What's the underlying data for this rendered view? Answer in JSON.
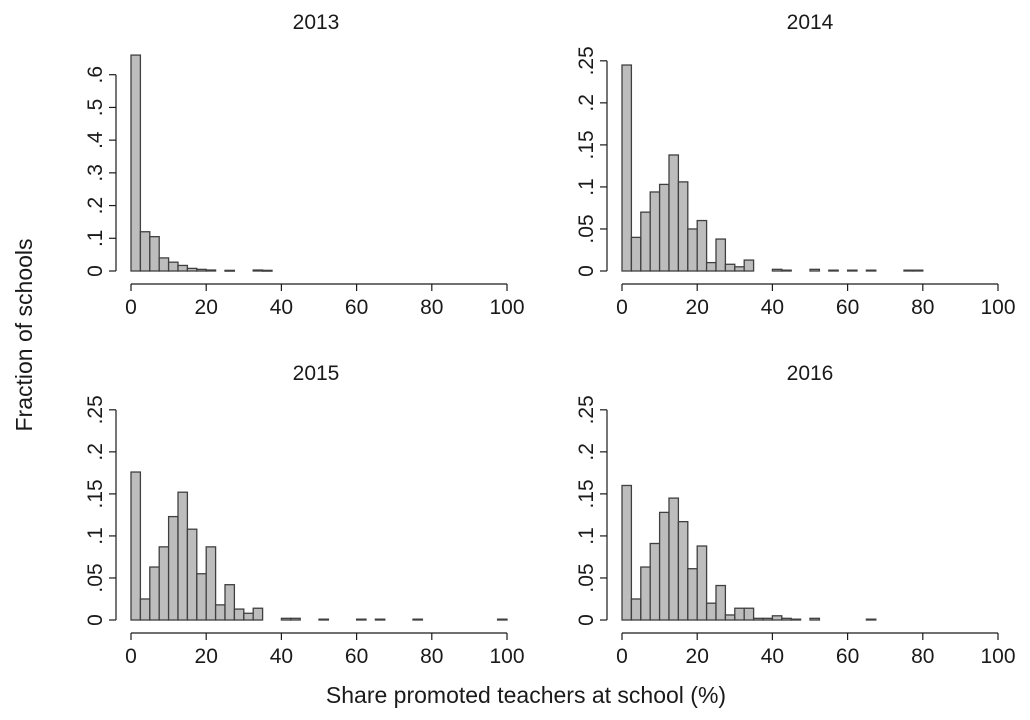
{
  "figure": {
    "xlabel": "Share promoted teachers at school (%)",
    "ylabel": "Fraction of schools"
  },
  "chart_data": [
    {
      "type": "bar",
      "title": "2013",
      "xlim": [
        0,
        100
      ],
      "ylim": [
        0,
        0.7
      ],
      "x_ticks": [
        0,
        20,
        40,
        60,
        80,
        100
      ],
      "x_tick_labels": [
        "0",
        "20",
        "40",
        "60",
        "80",
        "100"
      ],
      "y_ticks": [
        0,
        0.1,
        0.2,
        0.3,
        0.4,
        0.5,
        0.6
      ],
      "y_tick_labels": [
        "0",
        ".1",
        ".2",
        ".3",
        ".4",
        ".5",
        ".6"
      ],
      "bin_width": 2.5,
      "bin_centers": [
        1.25,
        3.75,
        6.25,
        8.75,
        11.25,
        13.75,
        16.25,
        18.75,
        21.25,
        26.25,
        33.75,
        36.25
      ],
      "values": [
        0.66,
        0.12,
        0.105,
        0.04,
        0.027,
        0.017,
        0.008,
        0.005,
        0.003,
        0.002,
        0.003,
        0.002
      ],
      "bar_color": "#bdbdbd"
    },
    {
      "type": "bar",
      "title": "2014",
      "xlim": [
        0,
        100
      ],
      "ylim": [
        0,
        0.27
      ],
      "x_ticks": [
        0,
        20,
        40,
        60,
        80,
        100
      ],
      "x_tick_labels": [
        "0",
        "20",
        "40",
        "60",
        "80",
        "100"
      ],
      "y_ticks": [
        0,
        0.05,
        0.1,
        0.15,
        0.2,
        0.25
      ],
      "y_tick_labels": [
        "0",
        ".05",
        ".1",
        ".15",
        ".2",
        ".25"
      ],
      "bin_width": 2.5,
      "bin_centers": [
        1.25,
        3.75,
        6.25,
        8.75,
        11.25,
        13.75,
        16.25,
        18.75,
        21.25,
        23.75,
        26.25,
        28.75,
        31.25,
        33.75,
        41.25,
        43.75,
        51.25,
        56.25,
        61.25,
        66.25,
        76.25,
        78.75
      ],
      "values": [
        0.245,
        0.04,
        0.07,
        0.094,
        0.103,
        0.138,
        0.106,
        0.05,
        0.06,
        0.01,
        0.038,
        0.008,
        0.005,
        0.013,
        0.002,
        0.001,
        0.002,
        0.001,
        0.001,
        0.001,
        0.001,
        0.001
      ],
      "bar_color": "#bdbdbd"
    },
    {
      "type": "bar",
      "title": "2015",
      "xlim": [
        0,
        100
      ],
      "ylim": [
        0,
        0.27
      ],
      "x_ticks": [
        0,
        20,
        40,
        60,
        80,
        100
      ],
      "x_tick_labels": [
        "0",
        "20",
        "40",
        "60",
        "80",
        "100"
      ],
      "y_ticks": [
        0,
        0.05,
        0.1,
        0.15,
        0.2,
        0.25
      ],
      "y_tick_labels": [
        "0",
        ".05",
        ".1",
        ".15",
        ".2",
        ".25"
      ],
      "bin_width": 2.5,
      "bin_centers": [
        1.25,
        3.75,
        6.25,
        8.75,
        11.25,
        13.75,
        16.25,
        18.75,
        21.25,
        23.75,
        26.25,
        28.75,
        31.25,
        33.75,
        41.25,
        43.75,
        51.25,
        61.25,
        66.25,
        76.25,
        98.75
      ],
      "values": [
        0.176,
        0.025,
        0.063,
        0.087,
        0.123,
        0.152,
        0.108,
        0.055,
        0.087,
        0.018,
        0.042,
        0.013,
        0.008,
        0.014,
        0.002,
        0.002,
        0.001,
        0.001,
        0.001,
        0.001,
        0.001
      ],
      "bar_color": "#bdbdbd"
    },
    {
      "type": "bar",
      "title": "2016",
      "xlim": [
        0,
        100
      ],
      "ylim": [
        0,
        0.27
      ],
      "x_ticks": [
        0,
        20,
        40,
        60,
        80,
        100
      ],
      "x_tick_labels": [
        "0",
        "20",
        "40",
        "60",
        "80",
        "100"
      ],
      "y_ticks": [
        0,
        0.05,
        0.1,
        0.15,
        0.2,
        0.25
      ],
      "y_tick_labels": [
        "0",
        ".05",
        ".1",
        ".15",
        ".2",
        ".25"
      ],
      "bin_width": 2.5,
      "bin_centers": [
        1.25,
        3.75,
        6.25,
        8.75,
        11.25,
        13.75,
        16.25,
        18.75,
        21.25,
        23.75,
        26.25,
        28.75,
        31.25,
        33.75,
        36.25,
        38.75,
        41.25,
        43.75,
        46.25,
        51.25,
        66.25
      ],
      "values": [
        0.16,
        0.025,
        0.063,
        0.091,
        0.128,
        0.145,
        0.117,
        0.061,
        0.088,
        0.02,
        0.041,
        0.006,
        0.014,
        0.014,
        0.002,
        0.002,
        0.005,
        0.002,
        0.001,
        0.002,
        0.001
      ],
      "bar_color": "#bdbdbd"
    }
  ]
}
